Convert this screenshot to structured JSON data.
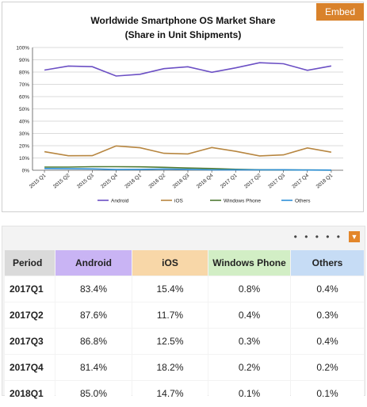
{
  "embed_label": "Embed",
  "chart_data": {
    "type": "line",
    "title": "Worldwide Smartphone OS Market Share",
    "subtitle": "(Share in Unit Shipments)",
    "categories": [
      "2015 Q1",
      "2015 Q2",
      "2015 Q3",
      "2015 Q4",
      "2016 Q1",
      "2016 Q2",
      "2016 Q3",
      "2016 Q4",
      "2017 Q1",
      "2017 Q2",
      "2017 Q3",
      "2017 Q4",
      "2018 Q1"
    ],
    "ylim": [
      0,
      100
    ],
    "yticks": [
      "0%",
      "10%",
      "20%",
      "30%",
      "40%",
      "50%",
      "60%",
      "70%",
      "80%",
      "90%",
      "100%"
    ],
    "grid": true,
    "legend_position": "bottom",
    "series": [
      {
        "name": "Android",
        "color": "#6b4fc4",
        "values": [
          81.6,
          84.9,
          84.4,
          76.8,
          78.2,
          82.8,
          84.3,
          79.8,
          83.4,
          87.6,
          86.8,
          81.4,
          85.0
        ]
      },
      {
        "name": "iOS",
        "color": "#b78640",
        "values": [
          15.1,
          11.8,
          11.9,
          19.8,
          18.3,
          13.8,
          13.3,
          18.5,
          15.4,
          11.7,
          12.5,
          18.2,
          14.7
        ]
      },
      {
        "name": "Windows Phone",
        "color": "#4f7a33",
        "values": [
          2.6,
          2.6,
          2.9,
          2.9,
          2.8,
          2.4,
          1.8,
          1.4,
          0.8,
          0.4,
          0.3,
          0.2,
          0.1
        ]
      },
      {
        "name": "Others",
        "color": "#2e90d8",
        "values": [
          1.4,
          1.2,
          1.1,
          0.6,
          0.7,
          1.0,
          0.7,
          0.3,
          0.4,
          0.3,
          0.4,
          0.2,
          0.1
        ]
      }
    ]
  },
  "toolbar": {
    "more_label": "• • • • •",
    "download_icon": "▼"
  },
  "table": {
    "headers": [
      "Period",
      "Android",
      "iOS",
      "Windows Phone",
      "Others"
    ],
    "rows": [
      [
        "2017Q1",
        "83.4%",
        "15.4%",
        "0.8%",
        "0.4%"
      ],
      [
        "2017Q2",
        "87.6%",
        "11.7%",
        "0.4%",
        "0.3%"
      ],
      [
        "2017Q3",
        "86.8%",
        "12.5%",
        "0.3%",
        "0.4%"
      ],
      [
        "2017Q4",
        "81.4%",
        "18.2%",
        "0.2%",
        "0.2%"
      ],
      [
        "2018Q1",
        "85.0%",
        "14.7%",
        "0.1%",
        "0.1%"
      ]
    ]
  }
}
